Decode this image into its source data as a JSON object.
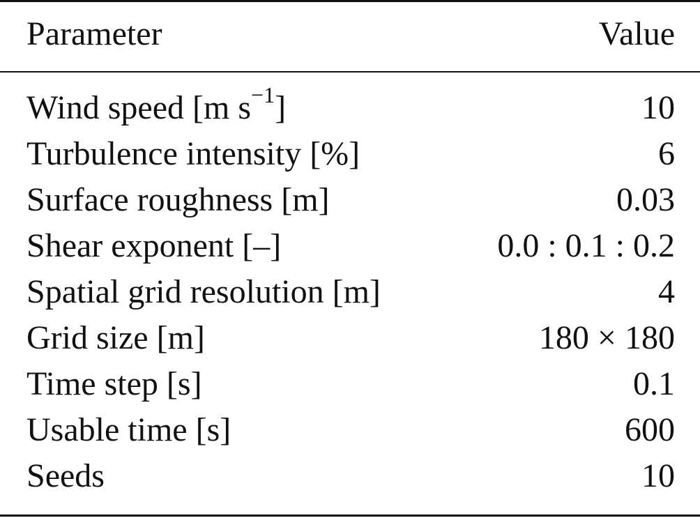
{
  "table": {
    "header": {
      "parameter": "Parameter",
      "value": "Value"
    },
    "rows": [
      {
        "parameter": "Wind speed [m s",
        "parameter_sup": "−1",
        "parameter_tail": "]",
        "value": "10"
      },
      {
        "parameter": "Turbulence intensity [%]",
        "value": "6"
      },
      {
        "parameter": "Surface roughness [m]",
        "value": "0.03"
      },
      {
        "parameter": "Shear exponent [–]",
        "value": "0.0 : 0.1 : 0.2"
      },
      {
        "parameter": "Spatial grid resolution [m]",
        "value": "4"
      },
      {
        "parameter": "Grid size [m]",
        "value": "180 × 180"
      },
      {
        "parameter": "Time step [s]",
        "value": "0.1"
      },
      {
        "parameter": "Usable time [s]",
        "value": "600"
      },
      {
        "parameter": "Seeds",
        "value": "10"
      }
    ]
  }
}
